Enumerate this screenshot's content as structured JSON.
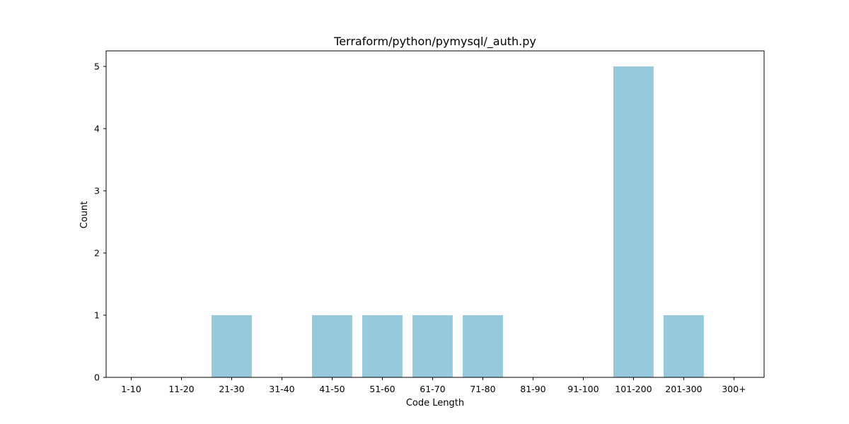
{
  "colors": {
    "bar": "#96c9dc",
    "axis": "#000000",
    "background": "#ffffff"
  },
  "chart_data": {
    "type": "bar",
    "title": "Terraform/python/pymysql/_auth.py",
    "xlabel": "Code Length",
    "ylabel": "Count",
    "categories": [
      "1-10",
      "11-20",
      "21-30",
      "31-40",
      "41-50",
      "51-60",
      "61-70",
      "71-80",
      "81-90",
      "91-100",
      "101-200",
      "201-300",
      "300+"
    ],
    "values": [
      0,
      0,
      1,
      0,
      1,
      1,
      1,
      1,
      0,
      0,
      5,
      1,
      0
    ],
    "ylim": [
      0,
      5.25
    ],
    "yticks": [
      0,
      1,
      2,
      3,
      4,
      5
    ],
    "grid": false,
    "legend": "none"
  }
}
